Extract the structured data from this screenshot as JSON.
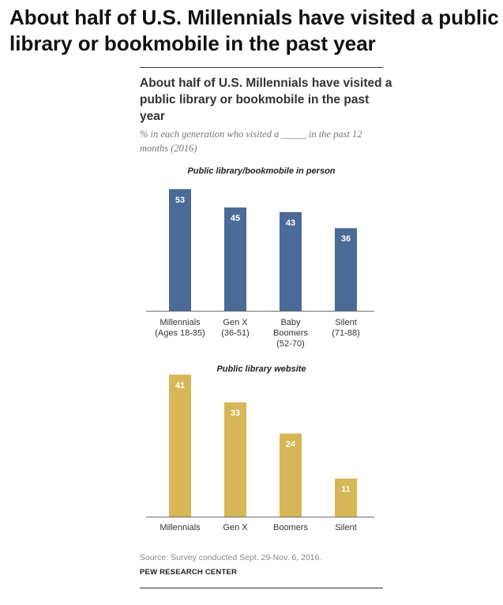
{
  "headline": "About half of U.S. Millennials have visited a public library or bookmobile in the past year",
  "chart_header": {
    "title": "About half of U.S. Millennials have visited a public library or bookmobile in the past year",
    "subtitle": "% in each generation who visited a _____ in the past 12 months (2016)"
  },
  "chart_data": [
    {
      "type": "bar",
      "title": "Public library/bookmobile in person",
      "categories": [
        [
          "Millennials",
          "(Ages 18-35)"
        ],
        [
          "Gen X",
          "(36-51)"
        ],
        [
          "Baby",
          "Boomers",
          "(52-70)"
        ],
        [
          "Silent",
          "(71-88)"
        ]
      ],
      "values": [
        53,
        45,
        43,
        36
      ],
      "color": "#4a6a97",
      "label_color": "#ffffff"
    },
    {
      "type": "bar",
      "title": "Public library website",
      "categories": [
        [
          "Millennials"
        ],
        [
          "Gen X"
        ],
        [
          "Boomers"
        ],
        [
          "Silent"
        ]
      ],
      "values": [
        41,
        33,
        24,
        11
      ],
      "color": "#d6b656",
      "label_color": "#ffffff"
    }
  ],
  "footer": {
    "source": "Source: Survey conducted Sept. 29-Nov. 6, 2016.",
    "organization": "PEW RESEARCH CENTER"
  }
}
